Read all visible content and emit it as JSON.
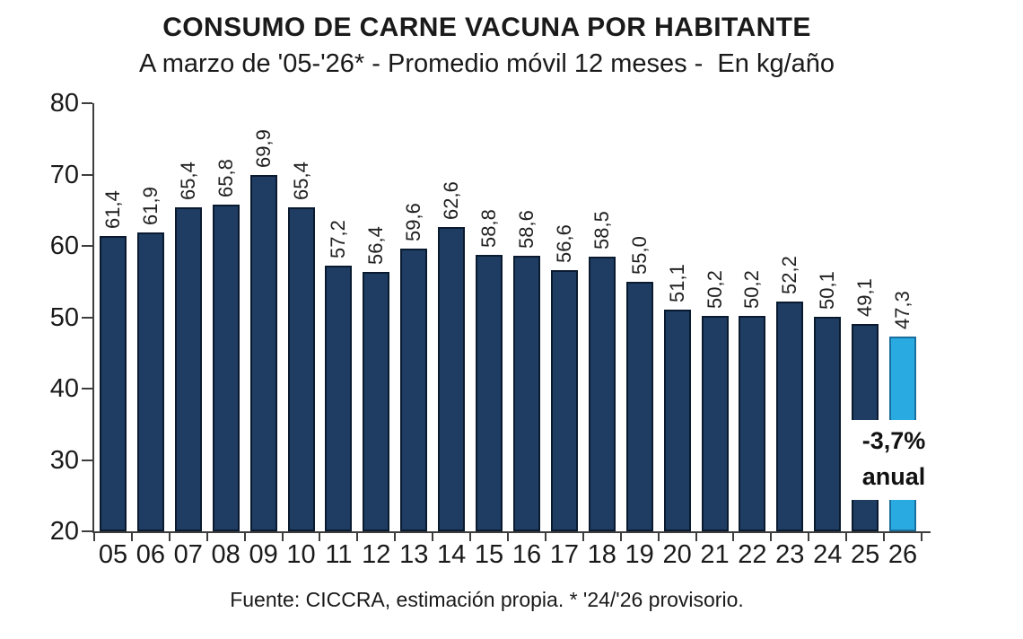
{
  "title": "CONSUMO DE CARNE VACUNA POR HABITANTE",
  "subtitle": "A marzo de '05-'26* - Promedio móvil 12 meses -  En kg/año",
  "footer": "Fuente: CICCRA, estimación propia. * '24/'26 provisorio.",
  "annotation": {
    "line1": "-3,7%",
    "line2": "anual"
  },
  "colors": {
    "bar": "#1F3C63",
    "bar_border": "#0A1B30",
    "highlight": "#29ABE2",
    "highlight_border": "#1A6F9E",
    "axis": "#3D3D3D",
    "background": "#FFFFFF"
  },
  "chart_data": {
    "type": "bar",
    "title": "CONSUMO DE CARNE VACUNA POR HABITANTE",
    "subtitle": "A marzo de '05-'26* - Promedio móvil 12 meses - En kg/año",
    "xlabel": "",
    "ylabel": "kg/año",
    "ylim": [
      20,
      80
    ],
    "yticks": [
      20,
      30,
      40,
      50,
      60,
      70,
      80
    ],
    "grid": false,
    "legend": false,
    "categories": [
      "05",
      "06",
      "07",
      "08",
      "09",
      "10",
      "11",
      "12",
      "13",
      "14",
      "15",
      "16",
      "17",
      "18",
      "19",
      "20",
      "21",
      "22",
      "23",
      "24",
      "25",
      "26"
    ],
    "values": [
      61.4,
      61.9,
      65.4,
      65.8,
      69.9,
      65.4,
      57.2,
      56.4,
      59.6,
      62.6,
      58.8,
      58.6,
      56.6,
      58.5,
      55.0,
      51.1,
      50.2,
      50.2,
      52.2,
      50.1,
      49.1,
      47.3
    ],
    "value_labels": [
      "61,4",
      "61,9",
      "65,4",
      "65,8",
      "69,9",
      "65,4",
      "57,2",
      "56,4",
      "59,6",
      "62,6",
      "58,8",
      "58,6",
      "56,6",
      "58,5",
      "55,0",
      "51,1",
      "50,2",
      "50,2",
      "52,2",
      "50,1",
      "49,1",
      "47,3"
    ],
    "highlight_index": 21,
    "annotation": "-3,7% anual",
    "source": "Fuente: CICCRA, estimación propia. * '24/'26 provisorio."
  }
}
